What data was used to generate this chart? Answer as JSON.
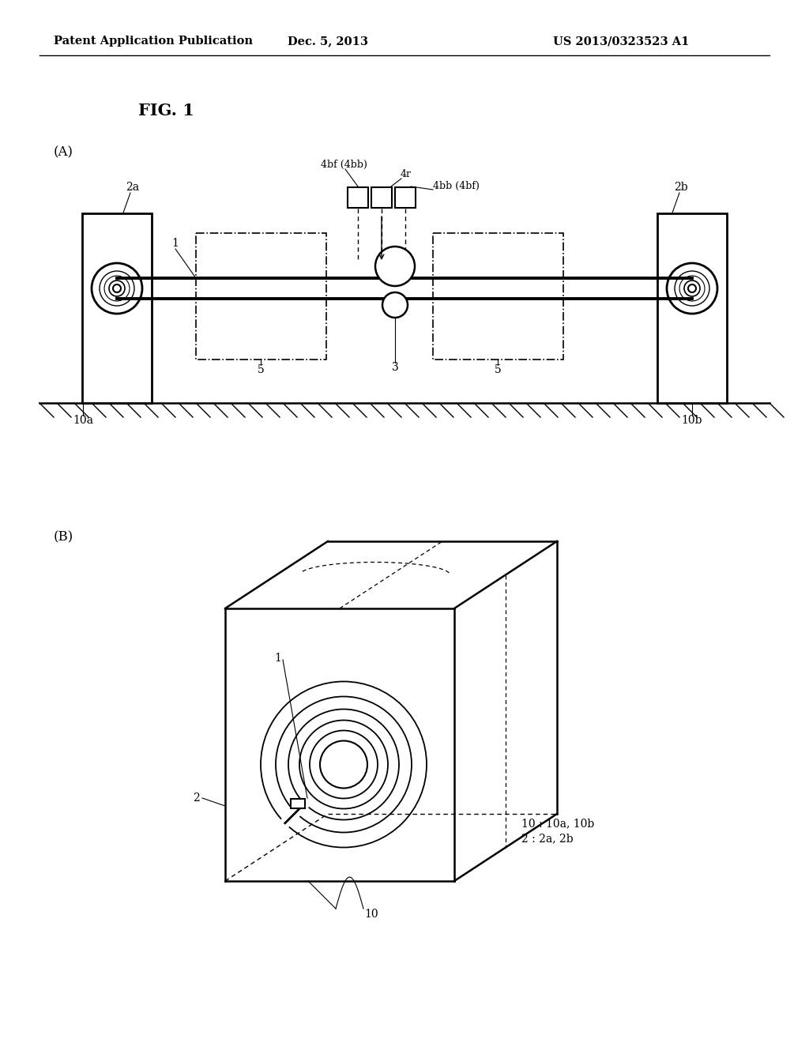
{
  "bg_color": "#ffffff",
  "header_left": "Patent Application Publication",
  "header_center": "Dec. 5, 2013",
  "header_right": "US 2013/0323523 A1",
  "fig_label": "FIG. 1",
  "subfig_A_label": "(A)",
  "subfig_B_label": "(B)",
  "legend_text": "10 : 10a, 10b\n2 : 2a, 2b"
}
